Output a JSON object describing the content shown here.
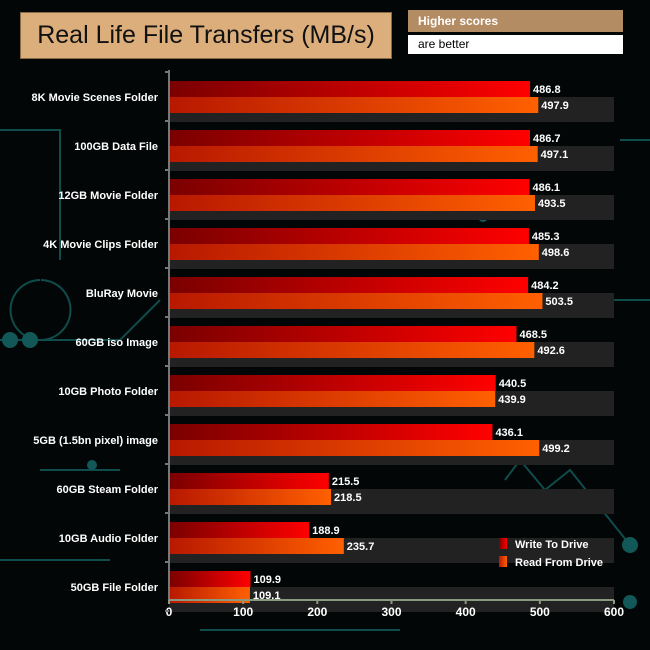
{
  "chart_data": {
    "type": "bar",
    "orientation": "horizontal",
    "title": "Real Life File Transfers (MB/s)",
    "note": [
      "Higher scores",
      "are better"
    ],
    "categories": [
      "8K Movie Scenes Folder",
      "100GB Data File",
      "12GB Movie Folder",
      "4K Movie Clips Folder",
      "BluRay Movie",
      "60GB iso Image",
      "10GB Photo Folder",
      "5GB (1.5bn pixel) image",
      "60GB Steam Folder",
      "10GB Audio Folder",
      "50GB File Folder"
    ],
    "series": [
      {
        "name": "Write To  Drive",
        "color": "#ee0000",
        "values": [
          486.8,
          486.7,
          486.1,
          485.3,
          484.2,
          468.5,
          440.5,
          436.1,
          215.5,
          188.9,
          109.9
        ]
      },
      {
        "name": "Read From  Drive",
        "color": "#f55a00",
        "values": [
          497.9,
          497.1,
          493.5,
          498.6,
          503.5,
          492.6,
          439.9,
          499.2,
          218.5,
          235.7,
          109.1
        ]
      }
    ],
    "xlim": [
      0,
      600
    ],
    "xticks": [
      "0",
      "100",
      "200",
      "300",
      "400",
      "500",
      "600"
    ],
    "legend": "bottom-right"
  }
}
